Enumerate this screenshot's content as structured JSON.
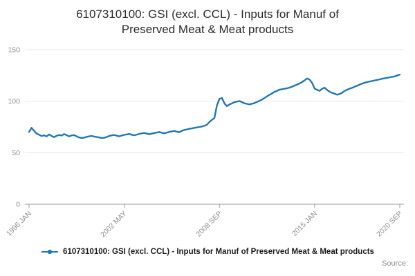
{
  "title": "6107310100: GSI (excl. CCL) - Inputs for Manuf of Preserved Meat & Meat products",
  "legend": {
    "label": "6107310100: GSI (excl. CCL) - Inputs for Manuf of Preserved Meat & Meat products"
  },
  "source_label": "Source:",
  "colors": {
    "line": "#1f77b4",
    "grid": "#e6e6e6",
    "axis": "#999999",
    "tick_text": "#8c8c8c"
  },
  "chart_data": {
    "type": "line",
    "title": "6107310100: GSI (excl. CCL) - Inputs for Manuf of Preserved Meat & Meat products",
    "xlabel": "",
    "ylabel": "",
    "ylim": [
      0,
      150
    ],
    "y_ticks": [
      0,
      50,
      100,
      150
    ],
    "grid": "horizontal gridlines only",
    "legend_position": "bottom",
    "x_tick_labels": [
      "1996 JAN",
      "2002 MAY",
      "2008 SEP",
      "2015 JAN",
      "2020 SEP"
    ],
    "x_tick_month_index": [
      0,
      76,
      152,
      228,
      296
    ],
    "x_range_months": 296,
    "series": [
      {
        "name": "6107310100: GSI (excl. CCL) - Inputs for Manuf of Preserved Meat & Meat products",
        "color": "#1f77b4",
        "x_unit": "months since 1996 JAN",
        "x_step_months": 2,
        "values": [
          70.2,
          74.1,
          71.3,
          68.6,
          67.4,
          66.2,
          66.9,
          65.8,
          67.8,
          66.3,
          65.1,
          66.4,
          67.2,
          66.6,
          68.1,
          67.0,
          65.9,
          66.8,
          67.1,
          65.9,
          64.8,
          64.3,
          64.6,
          65.4,
          65.9,
          66.3,
          65.7,
          65.2,
          64.8,
          64.2,
          64.5,
          65.3,
          66.2,
          66.8,
          67.2,
          66.5,
          65.9,
          66.7,
          67.3,
          67.8,
          68.2,
          67.4,
          66.9,
          67.6,
          68.3,
          68.8,
          69.2,
          68.5,
          67.9,
          68.6,
          69.1,
          69.6,
          70.1,
          69.4,
          68.9,
          69.5,
          70.2,
          70.7,
          71.1,
          70.4,
          70.0,
          71.2,
          72.1,
          72.6,
          73.2,
          73.6,
          74.1,
          74.5,
          75.0,
          75.4,
          76.1,
          77.2,
          79.8,
          81.9,
          83.7,
          95.8,
          102.2,
          103.1,
          97.9,
          95.2,
          96.8,
          97.9,
          99.1,
          99.6,
          100.2,
          99.1,
          98.0,
          97.4,
          96.9,
          97.6,
          98.2,
          99.3,
          100.4,
          101.6,
          103.1,
          104.7,
          106.2,
          107.6,
          109.0,
          110.1,
          111.2,
          111.6,
          112.1,
          112.6,
          113.2,
          114.1,
          115.2,
          116.1,
          117.2,
          118.6,
          120.3,
          122.1,
          121.0,
          117.8,
          112.2,
          111.0,
          110.1,
          112.0,
          113.1,
          110.8,
          109.2,
          108.1,
          107.2,
          106.3,
          107.1,
          108.2,
          110.0,
          111.1,
          112.2,
          113.0,
          114.1,
          115.0,
          116.2,
          117.1,
          118.0,
          118.6,
          119.1,
          119.6,
          120.2,
          120.7,
          121.2,
          121.8,
          122.3,
          122.7,
          123.2,
          123.6,
          124.1,
          125.0,
          125.8
        ]
      }
    ]
  }
}
